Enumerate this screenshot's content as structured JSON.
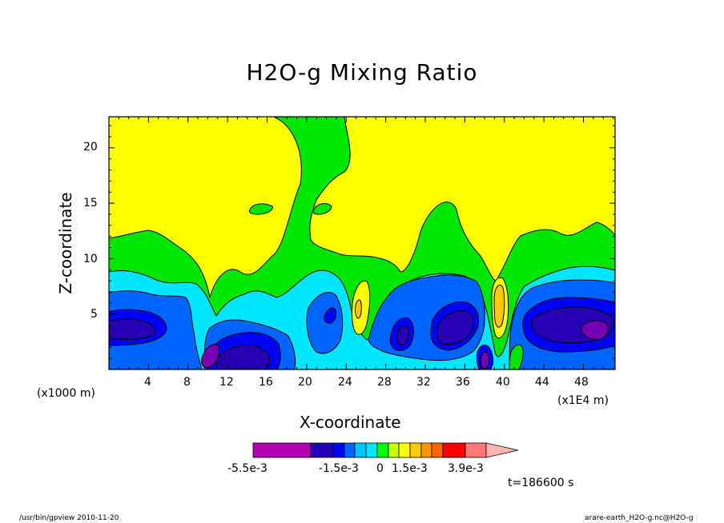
{
  "chart_data": {
    "type": "heatmap",
    "title": "H2O-g Mixing Ratio",
    "xlabel": "X-coordinate",
    "ylabel": "Z-coordinate",
    "x_unit_left": "(x1000 m)",
    "x_unit_right": "(x1E4 m)",
    "xlim": [
      0,
      51.2
    ],
    "ylim": [
      0,
      22.8
    ],
    "x_ticks": [
      4,
      8,
      12,
      16,
      20,
      24,
      28,
      32,
      36,
      40,
      44,
      48
    ],
    "y_ticks": [
      5,
      10,
      15,
      20
    ],
    "time_label": "t=186600 s",
    "colorbar": {
      "labels": [
        "-5.5e-3",
        "-1.5e-3",
        "0",
        "1.5e-3",
        "3.9e-3"
      ],
      "colors": [
        "#b400b4",
        "#7800b4",
        "#2800b4",
        "#0000ff",
        "#0064ff",
        "#00c8ff",
        "#00e6ff",
        "#00ff00",
        "#c8ff00",
        "#ffff00",
        "#ffc800",
        "#ff9600",
        "#ff6400",
        "#ff0000",
        "#ff7878",
        "#ffb4b4"
      ]
    }
  },
  "footer": {
    "left": "/usr/bin/gpview  2010-11-20",
    "right": "arare-earth_H2O-g.nc@H2O-g"
  }
}
